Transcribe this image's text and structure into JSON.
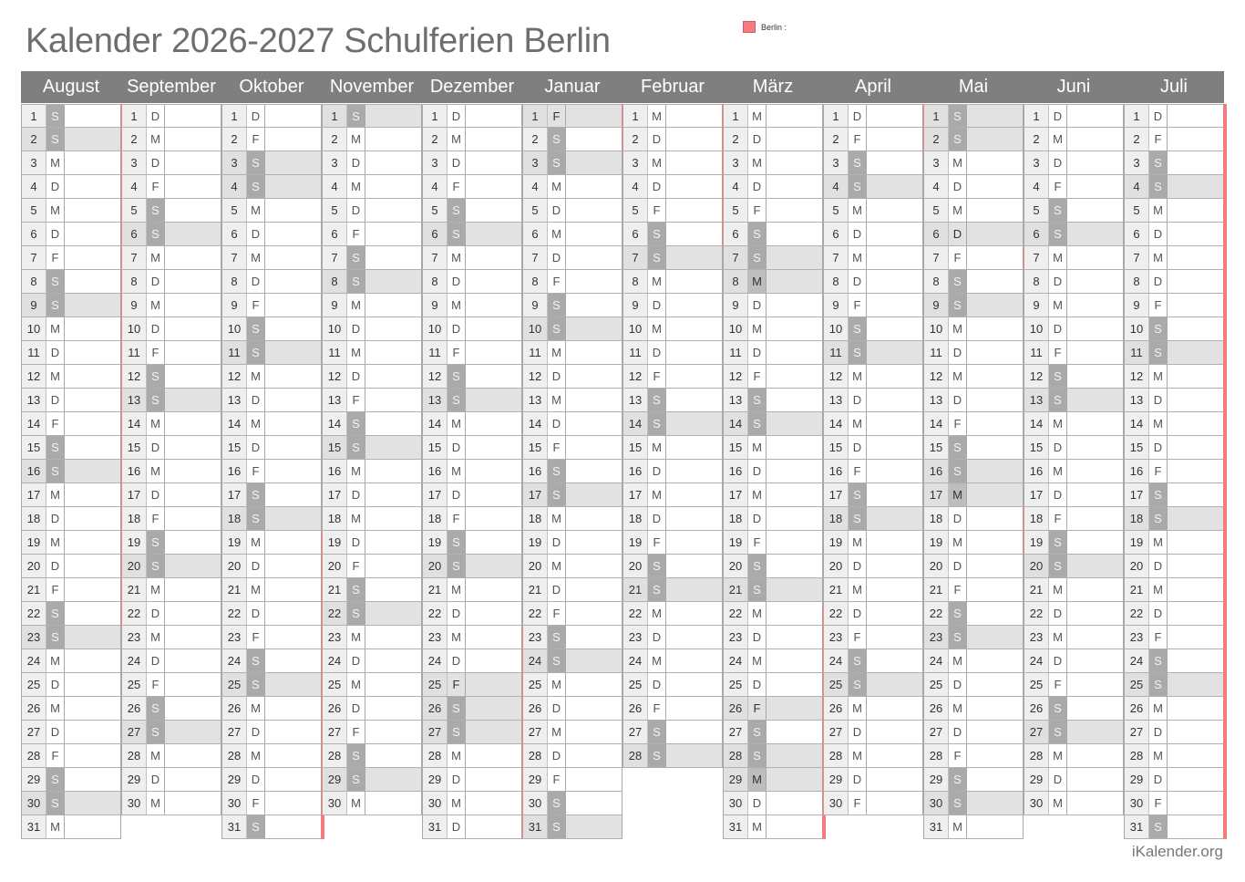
{
  "title": "Kalender 2026-2027 Schulferien Berlin",
  "legend": {
    "label": "Berlin :",
    "color": "#f47c7f"
  },
  "footer": "iKalender.org",
  "colors": {
    "header_bg": "#7f7f7f",
    "vacation": "#f47c7f",
    "weekend_letter_bg": "#aaaaaa",
    "sunday_row_bg": "#e2e2e2"
  },
  "months": [
    {
      "name": "August",
      "days": 31,
      "first_weekday": 5,
      "holidays": [],
      "vacation": [
        [
          1,
          22
        ]
      ]
    },
    {
      "name": "September",
      "days": 30,
      "first_weekday": 1,
      "holidays": [],
      "vacation": []
    },
    {
      "name": "Oktober",
      "days": 31,
      "first_weekday": 3,
      "holidays": [
        3
      ],
      "vacation": [
        [
          19,
          31
        ]
      ]
    },
    {
      "name": "November",
      "days": 30,
      "first_weekday": 6,
      "holidays": [],
      "vacation": []
    },
    {
      "name": "Dezember",
      "days": 31,
      "first_weekday": 1,
      "holidays": [
        25,
        26
      ],
      "vacation": [
        [
          23,
          31
        ]
      ]
    },
    {
      "name": "Januar",
      "days": 31,
      "first_weekday": 4,
      "holidays": [
        1
      ],
      "vacation": [
        [
          1,
          2
        ]
      ]
    },
    {
      "name": "Februar",
      "days": 28,
      "first_weekday": 0,
      "holidays": [],
      "vacation": [
        [
          1,
          6
        ]
      ]
    },
    {
      "name": "März",
      "days": 31,
      "first_weekday": 0,
      "holidays": [
        8,
        26,
        28,
        29
      ],
      "vacation": [
        [
          22,
          31
        ]
      ]
    },
    {
      "name": "April",
      "days": 30,
      "first_weekday": 3,
      "holidays": [],
      "vacation": [
        [
          1,
          2
        ]
      ]
    },
    {
      "name": "Mai",
      "days": 31,
      "first_weekday": 5,
      "holidays": [
        1,
        6,
        16,
        17
      ],
      "vacation": [
        [
          7,
          7
        ],
        [
          18,
          19
        ]
      ]
    },
    {
      "name": "Juni",
      "days": 30,
      "first_weekday": 1,
      "holidays": [],
      "vacation": []
    },
    {
      "name": "Juli",
      "days": 31,
      "first_weekday": 3,
      "holidays": [],
      "vacation": [
        [
          1,
          31
        ]
      ]
    }
  ],
  "weekday_letters": [
    "M",
    "D",
    "M",
    "D",
    "F",
    "S",
    "S"
  ]
}
